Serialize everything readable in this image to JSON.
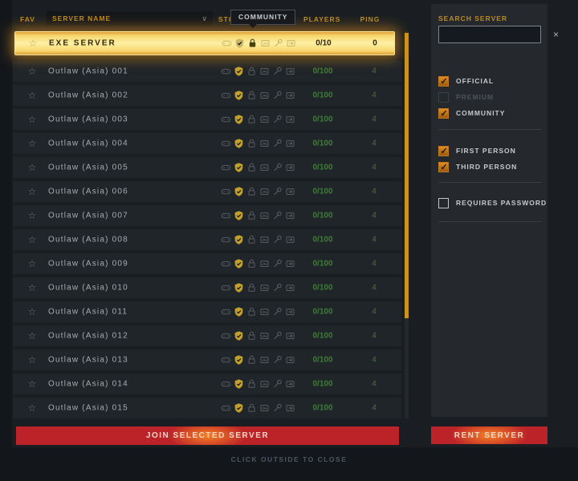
{
  "table": {
    "headers": {
      "fav": "FAV",
      "server_name": "SERVER NAME",
      "stock": "STOCK",
      "players": "PLAYERS",
      "ping": "PING"
    },
    "tooltip": "COMMUNITY",
    "selected": {
      "name": "EXE SERVER",
      "players": "0/10",
      "ping": "0"
    },
    "rows": [
      {
        "name": "Outlaw (Asia) 001",
        "players": "0/100",
        "ping": "4"
      },
      {
        "name": "Outlaw (Asia) 002",
        "players": "0/100",
        "ping": "4"
      },
      {
        "name": "Outlaw (Asia) 003",
        "players": "0/100",
        "ping": "4"
      },
      {
        "name": "Outlaw (Asia) 004",
        "players": "0/100",
        "ping": "4"
      },
      {
        "name": "Outlaw (Asia) 005",
        "players": "0/100",
        "ping": "4"
      },
      {
        "name": "Outlaw (Asia) 006",
        "players": "0/100",
        "ping": "4"
      },
      {
        "name": "Outlaw (Asia) 007",
        "players": "0/100",
        "ping": "4"
      },
      {
        "name": "Outlaw (Asia) 008",
        "players": "0/100",
        "ping": "4"
      },
      {
        "name": "Outlaw (Asia) 009",
        "players": "0/100",
        "ping": "4"
      },
      {
        "name": "Outlaw (Asia) 010",
        "players": "0/100",
        "ping": "4"
      },
      {
        "name": "Outlaw (Asia) 011",
        "players": "0/100",
        "ping": "4"
      },
      {
        "name": "Outlaw (Asia) 012",
        "players": "0/100",
        "ping": "4"
      },
      {
        "name": "Outlaw (Asia) 013",
        "players": "0/100",
        "ping": "4"
      },
      {
        "name": "Outlaw (Asia) 014",
        "players": "0/100",
        "ping": "4"
      },
      {
        "name": "Outlaw (Asia) 015",
        "players": "0/100",
        "ping": "4"
      }
    ],
    "join_button": "JOIN SELECTED SERVER"
  },
  "sidebar": {
    "search_label": "SEARCH SERVER",
    "search_value": "",
    "filters": [
      {
        "label": "OFFICIAL",
        "state": "checked"
      },
      {
        "label": "PREMIUM",
        "state": "disabled"
      },
      {
        "label": "COMMUNITY",
        "state": "checked"
      },
      {
        "label": "FIRST PERSON",
        "state": "checked"
      },
      {
        "label": "THIRD PERSON",
        "state": "checked"
      },
      {
        "label": "REQUIRES PASSWORD",
        "state": "unchecked"
      }
    ],
    "rent_button": "RENT SERVER"
  },
  "footer": {
    "close_hint": "CLICK OUTSIDE TO CLOSE"
  },
  "glyphs": {
    "star": "☆",
    "sort": "∨",
    "clear": "×"
  },
  "icons": {
    "row_icons": [
      "gamepad",
      "shield-check",
      "lock",
      "map-screen",
      "wrench",
      "screen-arrow"
    ]
  },
  "colors": {
    "accent": "#c9931f",
    "selected_row": "#fdf0a4",
    "button_red": "#bc2328",
    "players_green": "#3f7c37"
  }
}
